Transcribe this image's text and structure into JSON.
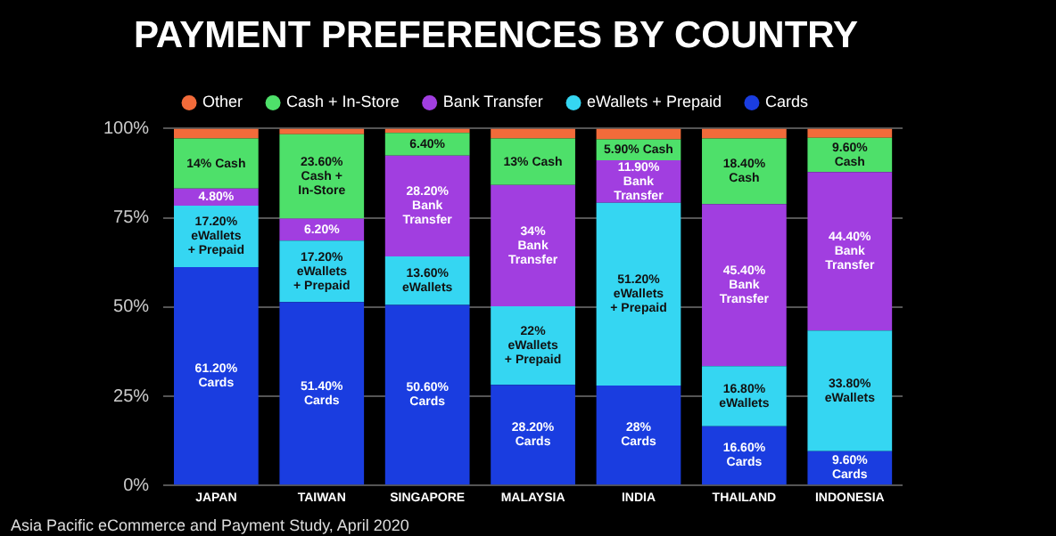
{
  "chart_data": {
    "type": "bar",
    "title": "PAYMENT PREFERENCES BY COUNTRY",
    "categories": [
      "JAPAN",
      "TAIWAN",
      "SINGAPORE",
      "MALAYSIA",
      "INDIA",
      "THAILAND",
      "INDONESIA"
    ],
    "stacked": true,
    "ylim": [
      0,
      100
    ],
    "yticks": [
      {
        "value": 0,
        "label": "0%"
      },
      {
        "value": 25,
        "label": "25%"
      },
      {
        "value": 50,
        "label": "50%"
      },
      {
        "value": 75,
        "label": "75%"
      },
      {
        "value": 100,
        "label": "100%"
      }
    ],
    "grid": "y",
    "legend": "top",
    "series": [
      {
        "name": "Cards",
        "color": "#1a3de0",
        "values": [
          61.2,
          51.4,
          50.6,
          28.2,
          28,
          16.6,
          9.6
        ],
        "value_labels": [
          "61.20%\nCards",
          "51.40%\nCards",
          "50.60%\nCards",
          "28.20%\nCards",
          "28%\nCards",
          "16.60%\nCards",
          "9.60%\nCards"
        ]
      },
      {
        "name": "eWallets + Prepaid",
        "color": "#35d6f2",
        "values": [
          17.2,
          17.2,
          13.6,
          22,
          51.2,
          16.8,
          33.8
        ],
        "value_labels": [
          "17.20%\neWallets\n+ Prepaid",
          "17.20%\neWallets\n+ Prepaid",
          "13.60%\neWallets",
          "22%\neWallets\n+ Prepaid",
          "51.20%\neWallets\n+ Prepaid",
          "16.80%\neWallets",
          "33.80%\neWallets"
        ]
      },
      {
        "name": "Bank Transfer",
        "color": "#a13ee0",
        "values": [
          4.8,
          6.2,
          28.2,
          34,
          11.9,
          45.4,
          44.4
        ],
        "value_labels": [
          "4.80%",
          "6.20%",
          "28.20%\nBank\nTransfer",
          "34%\nBank\nTransfer",
          "11.90%\nBank\nTransfer",
          "45.40%\nBank\nTransfer",
          "44.40%\nBank\nTransfer"
        ]
      },
      {
        "name": "Cash + In-Store",
        "color": "#4ee06a",
        "values": [
          14,
          23.6,
          6.4,
          13,
          5.9,
          18.4,
          9.6
        ],
        "value_labels": [
          "14% Cash",
          "23.60%\nCash +\nIn-Store",
          "6.40%",
          "13% Cash",
          "5.90% Cash",
          "18.40%\nCash",
          "9.60%\nCash"
        ]
      },
      {
        "name": "Other",
        "color": "#f26b3a",
        "values": [
          2.8,
          1.6,
          1.2,
          2.8,
          3,
          2.8,
          2.6
        ],
        "value_labels": [
          null,
          null,
          null,
          null,
          null,
          null,
          null
        ]
      }
    ],
    "annotations": [
      "Asia Pacific eCommerce and Payment Study, April 2020"
    ]
  }
}
